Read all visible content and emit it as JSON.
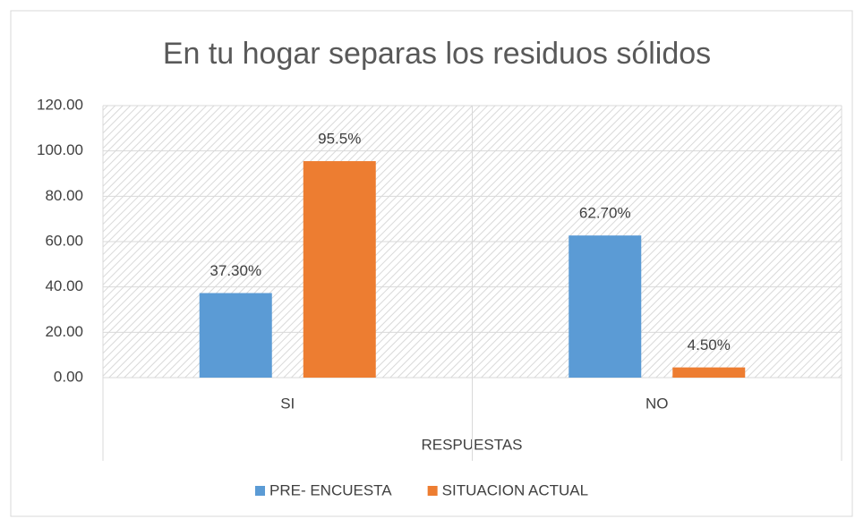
{
  "chart_data": {
    "type": "bar",
    "title": "En tu hogar separas los residuos sólidos",
    "x_label": "RESPUESTAS",
    "categories": [
      "SI",
      "NO"
    ],
    "series": [
      {
        "name": "PRE- ENCUESTA",
        "color": "#5b9bd5",
        "values": [
          37.3,
          62.7
        ],
        "value_labels": [
          "37.30%",
          "62.70%"
        ]
      },
      {
        "name": "SITUACION ACTUAL",
        "color": "#ed7d31",
        "values": [
          95.5,
          4.5
        ],
        "value_labels": [
          "95.5%",
          "4.50%"
        ]
      }
    ],
    "ylim": [
      0,
      120
    ],
    "yticks": [
      {
        "value": 0,
        "label": "0.00"
      },
      {
        "value": 20,
        "label": "20.00"
      },
      {
        "value": 40,
        "label": "40.00"
      },
      {
        "value": 60,
        "label": "60.00"
      },
      {
        "value": 80,
        "label": "80.00"
      },
      {
        "value": 100,
        "label": "100.00"
      },
      {
        "value": 120,
        "label": "120.00"
      }
    ],
    "grid": true,
    "legend": "bottom"
  }
}
